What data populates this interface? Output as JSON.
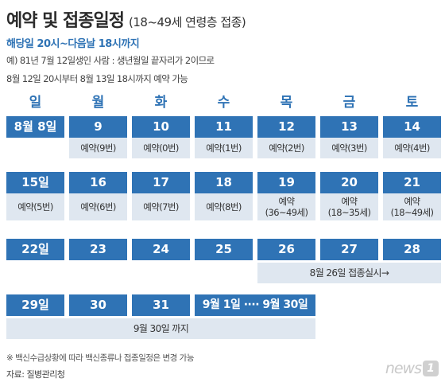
{
  "header": {
    "title_main": "예약 및 접종일정",
    "title_sub": "(18~49세 연령층 접종)",
    "period": "해당일 20시~다음날 18시까지",
    "example_line1": "예) 81년 7월 12일생인 사람 : 생년월일 끝자리가 2이므로",
    "example_line2": "8월 12일 20시부터 8월 13일 18시까지 예약 가능"
  },
  "weekdays": [
    "일",
    "월",
    "화",
    "수",
    "목",
    "금",
    "토"
  ],
  "week1": [
    {
      "date": "8월 8일",
      "reservation": ""
    },
    {
      "date": "9",
      "reservation": "예약(9번)"
    },
    {
      "date": "10",
      "reservation": "예약(0번)"
    },
    {
      "date": "11",
      "reservation": "예약(1번)"
    },
    {
      "date": "12",
      "reservation": "예약(2번)"
    },
    {
      "date": "13",
      "reservation": "예약(3번)"
    },
    {
      "date": "14",
      "reservation": "예약(4번)"
    }
  ],
  "week2": [
    {
      "date": "15일",
      "reservation": "예약(5번)"
    },
    {
      "date": "16",
      "reservation": "예약(6번)"
    },
    {
      "date": "17",
      "reservation": "예약(7번)"
    },
    {
      "date": "18",
      "reservation": "예약(8번)"
    },
    {
      "date": "19",
      "reservation": "예약\n(36~49세)"
    },
    {
      "date": "20",
      "reservation": "예약\n(18~35세)"
    },
    {
      "date": "21",
      "reservation": "예약\n(18~49세)"
    }
  ],
  "week3": {
    "dates": [
      "22일",
      "23",
      "24",
      "25",
      "26",
      "27",
      "28"
    ],
    "band": "8월 26일 접종실시→"
  },
  "week4": {
    "dates": [
      "29일",
      "30",
      "31"
    ],
    "range": "9월 1일  ····  9월 30일",
    "band": "9월 30일 까지"
  },
  "footer": {
    "note": "※ 백신수급상황에 따라 백신종류나 접종일정은 변경 가능",
    "source": "자료: 질병관리청",
    "logo_word": "news",
    "logo_badge": "1"
  },
  "colors": {
    "accent": "#2f73b5",
    "cell_bg": "#dfe7f0"
  }
}
